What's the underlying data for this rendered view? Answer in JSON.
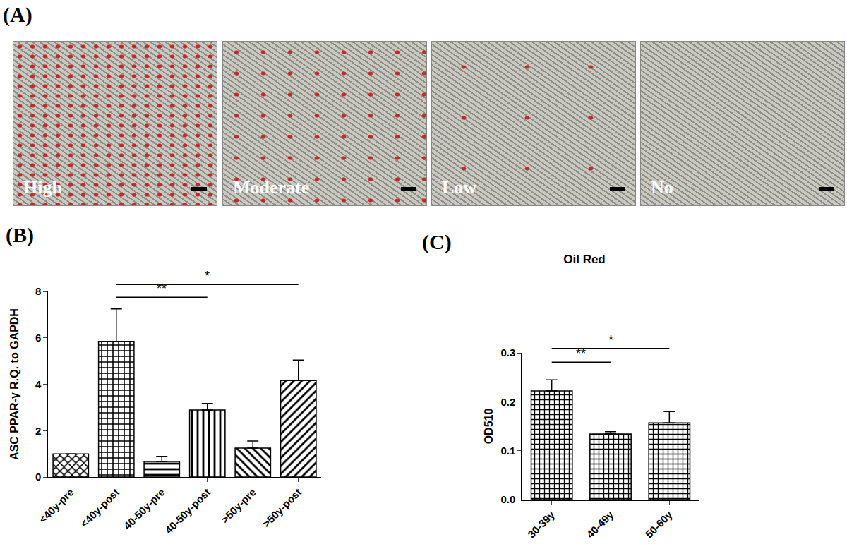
{
  "panel_a": {
    "label": "(A)",
    "images": [
      "High",
      "Moderate",
      "Low",
      "No"
    ]
  },
  "chart_data": [
    {
      "label": "(B)",
      "type": "bar",
      "categories": [
        "<40y-pre",
        "<40y-post",
        "40-50y-pre",
        "40-50y-post",
        ">50y-pre",
        ">50y-post"
      ],
      "values": [
        1.0,
        5.85,
        0.67,
        2.89,
        1.25,
        4.16
      ],
      "error": [
        0,
        1.4,
        0.22,
        0.28,
        0.3,
        0.88
      ],
      "color": "#000000",
      "y_label": "ASC PPAR-γ R.Q. to GAPDH",
      "ylim": [
        0,
        8
      ],
      "yticks": [
        0,
        2,
        4,
        6,
        8
      ],
      "grid": false,
      "annotations": [
        {
          "text": "**",
          "from": "<40y-post",
          "to": "40-50y-post",
          "y": 7.75
        },
        {
          "text": "*",
          "from": "<40y-post",
          "to": ">50y-post",
          "y": 8.3
        }
      ]
    },
    {
      "label": "(C)",
      "type": "bar",
      "title": "Oil Red",
      "categories": [
        "30-39y",
        "40-49y",
        "50-60y"
      ],
      "values": [
        0.222,
        0.134,
        0.157
      ],
      "error": [
        0.023,
        0.005,
        0.023
      ],
      "color": "#000000",
      "y_label": "OD510",
      "ylim": [
        0,
        0.3
      ],
      "yticks": [
        {
          "value": 0,
          "label": "0.0"
        },
        0.1,
        0.2,
        0.3
      ],
      "grid": false,
      "annotations": [
        {
          "text": "**",
          "from": "30-39y",
          "to": "40-49y",
          "y": 0.281
        },
        {
          "text": "*",
          "from": "30-39y",
          "to": "50-60y",
          "y": 0.309
        }
      ]
    }
  ]
}
